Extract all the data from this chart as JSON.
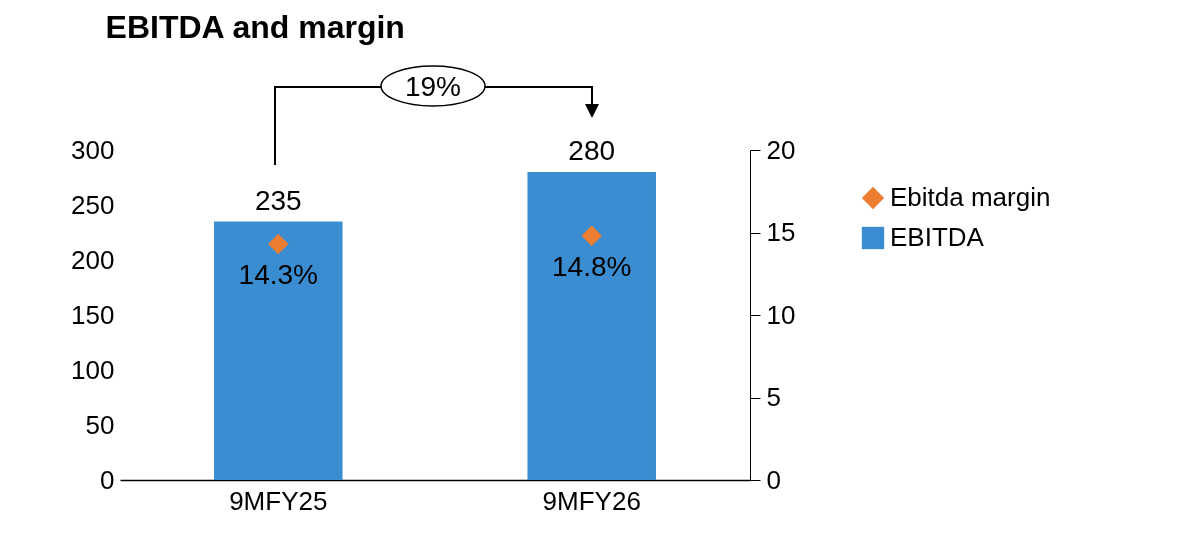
{
  "chart_data": {
    "type": "bar",
    "title": "EBITDA and margin",
    "categories": [
      "9MFY25",
      "9MFY26"
    ],
    "series": [
      {
        "name": "Ebitda margin",
        "type": "scatter",
        "axis": "y2",
        "color": "#ed7d31",
        "marker": "diamond",
        "values": [
          14.3,
          14.8
        ],
        "value_labels": [
          "14.3%",
          "14.8%"
        ]
      },
      {
        "name": "EBITDA",
        "color": "#3a8dd0",
        "values": [
          235,
          280
        ],
        "value_labels": [
          "235",
          "280"
        ]
      }
    ],
    "ylim": [
      0,
      300
    ],
    "yticks": [
      0,
      50,
      100,
      150,
      200,
      250,
      300
    ],
    "y2lim": [
      0,
      20
    ],
    "y2ticks": [
      0,
      5,
      10,
      15,
      20
    ],
    "legend": "right",
    "grid": false,
    "annotations": [
      "19%"
    ]
  }
}
